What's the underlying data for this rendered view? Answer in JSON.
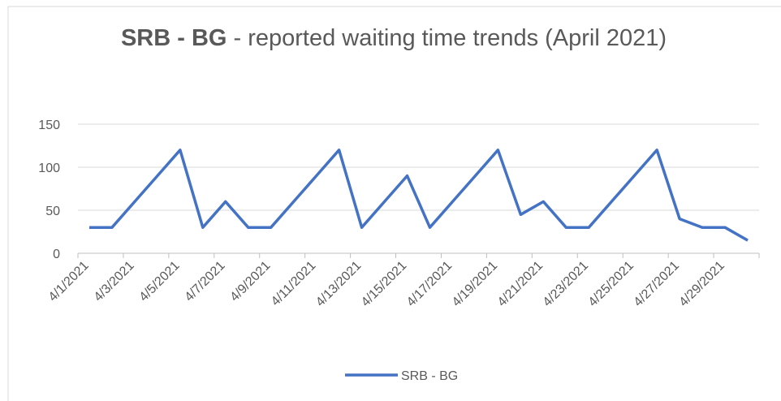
{
  "chart_data": {
    "type": "line",
    "title_bold": "SRB - BG",
    "title": "- reported waiting time trends (April 2021)",
    "categories": [
      "4/1/2021",
      null,
      "4/3/2021",
      null,
      "4/5/2021",
      null,
      "4/7/2021",
      null,
      "4/9/2021",
      null,
      "4/11/2021",
      null,
      "4/13/2021",
      null,
      "4/15/2021",
      null,
      "4/17/2021",
      null,
      "4/19/2021",
      null,
      "4/21/2021",
      null,
      "4/23/2021",
      null,
      "4/25/2021",
      null,
      "4/27/2021",
      null,
      "4/29/2021",
      null
    ],
    "series": [
      {
        "name": "SRB - BG",
        "color": "#4472c4",
        "values": [
          30,
          30,
          60,
          90,
          120,
          30,
          60,
          30,
          30,
          60,
          90,
          120,
          30,
          60,
          90,
          30,
          60,
          90,
          120,
          45,
          60,
          30,
          30,
          60,
          90,
          120,
          40,
          30,
          30,
          15
        ]
      }
    ],
    "ylim": [
      0,
      150
    ],
    "yticks": [
      0,
      50,
      100,
      150
    ],
    "grid": true,
    "legend": "bottom"
  }
}
